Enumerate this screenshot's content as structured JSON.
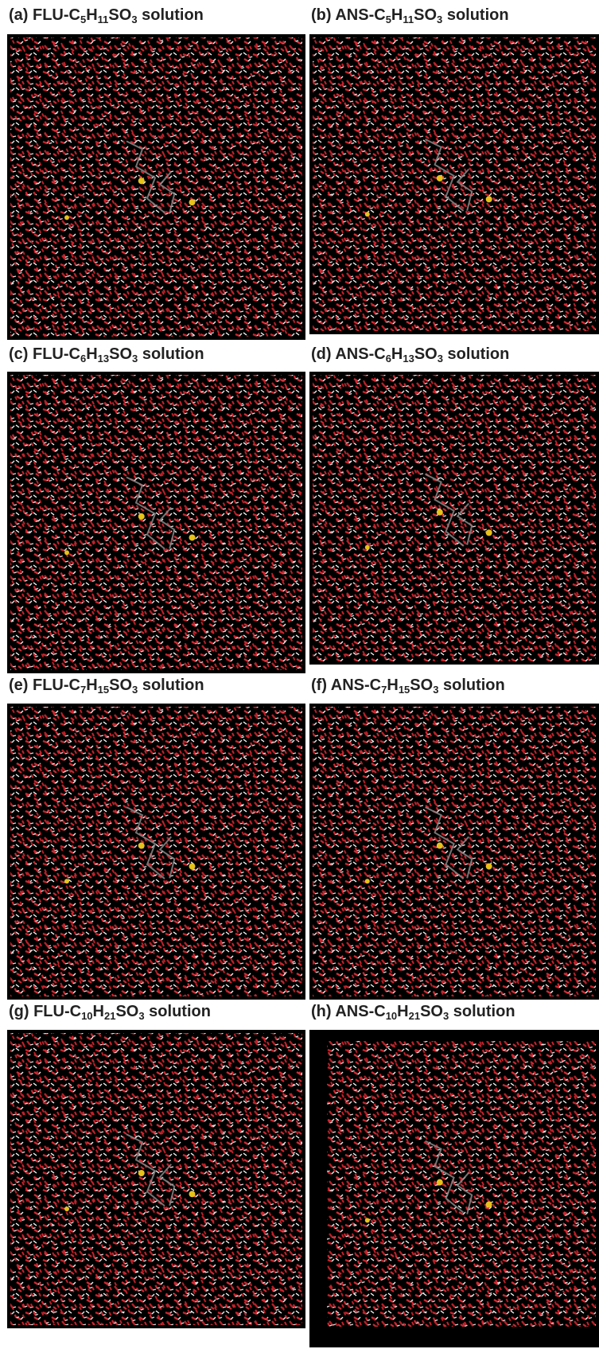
{
  "panels": [
    {
      "caption": [
        "(a) FLU-C",
        "5",
        "H",
        "11",
        "SO",
        "3",
        " solution"
      ]
    },
    {
      "caption": [
        "(b) ANS-C",
        "5",
        "H",
        "11",
        "SO",
        "3",
        " solution"
      ]
    },
    {
      "caption": [
        "(c) FLU-C",
        "6",
        "H",
        "13",
        "SO",
        "3",
        " solution"
      ]
    },
    {
      "caption": [
        "(d) ANS-C",
        "6",
        "H",
        "13",
        "SO",
        "3",
        " solution"
      ]
    },
    {
      "caption": [
        "(e) FLU-C",
        "7",
        "H",
        "15",
        "SO",
        "3",
        " solution"
      ]
    },
    {
      "caption": [
        "(f) ANS-C",
        "7",
        "H",
        "15",
        "SO",
        "3",
        " solution"
      ]
    },
    {
      "caption": [
        "(g) FLU-C",
        "10",
        "H",
        "21",
        "SO",
        "3",
        " solution"
      ]
    },
    {
      "caption": [
        "(h) ANS-C",
        "10",
        "H",
        "21",
        "SO",
        "3",
        " solution"
      ]
    }
  ]
}
